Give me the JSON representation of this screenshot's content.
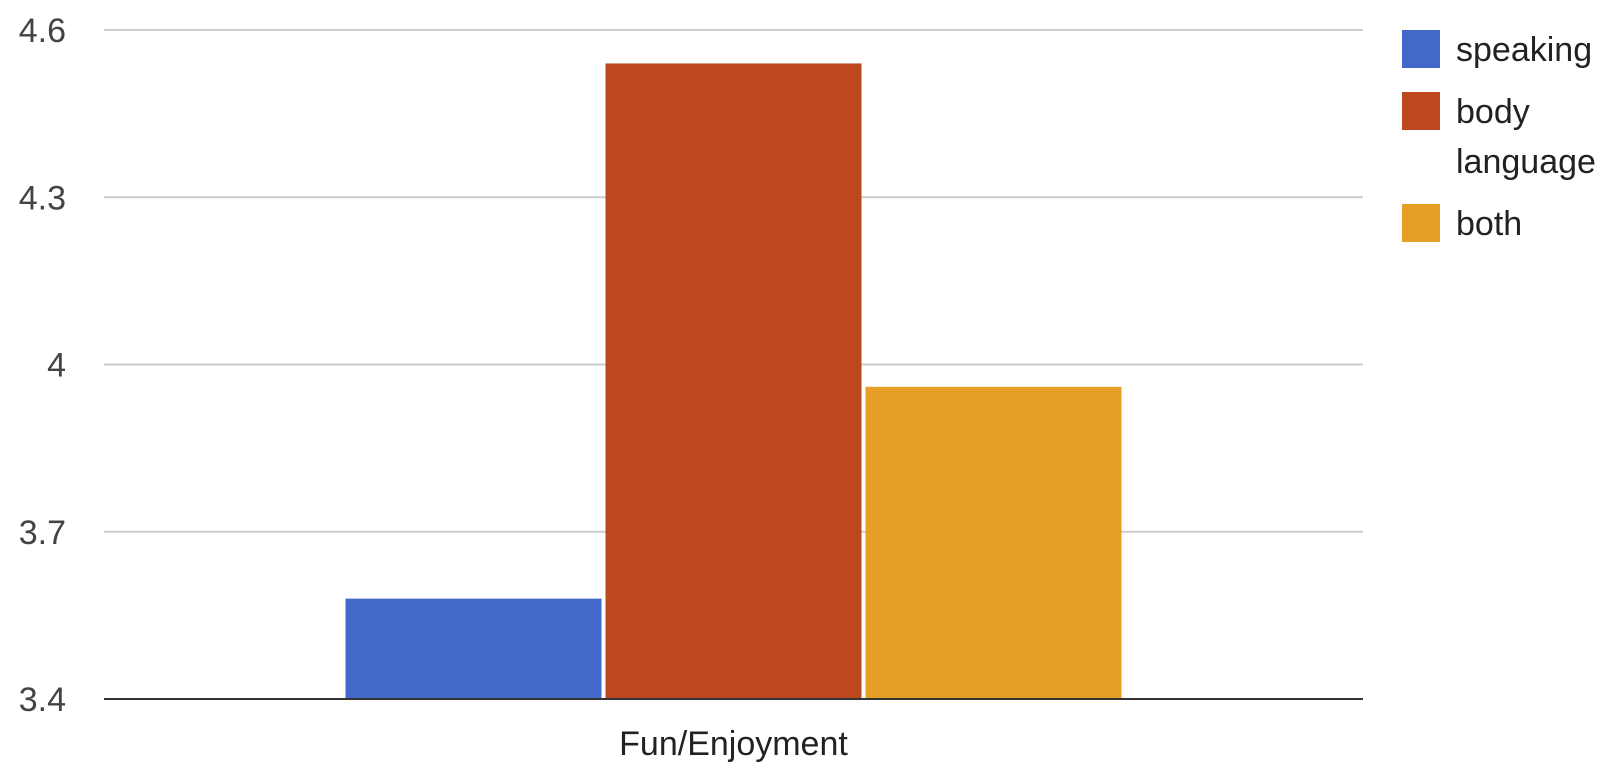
{
  "chart_data": {
    "type": "bar",
    "categories": [
      "Fun/Enjoyment"
    ],
    "series": [
      {
        "name": "speaking",
        "values": [
          3.58
        ],
        "color": "#4468c9"
      },
      {
        "name": "body language",
        "values": [
          4.54
        ],
        "color": "#bd4820"
      },
      {
        "name": "both",
        "values": [
          3.96
        ],
        "color": "#e79e27"
      }
    ],
    "yticks": [
      "3.4",
      "3.7",
      "4",
      "4.3",
      "4.6"
    ],
    "ylim": [
      3.4,
      4.6
    ],
    "grid": true,
    "legend_position": "right",
    "legend_lines": [
      [
        "speaking"
      ],
      [
        "body",
        "language"
      ],
      [
        "both"
      ]
    ]
  }
}
